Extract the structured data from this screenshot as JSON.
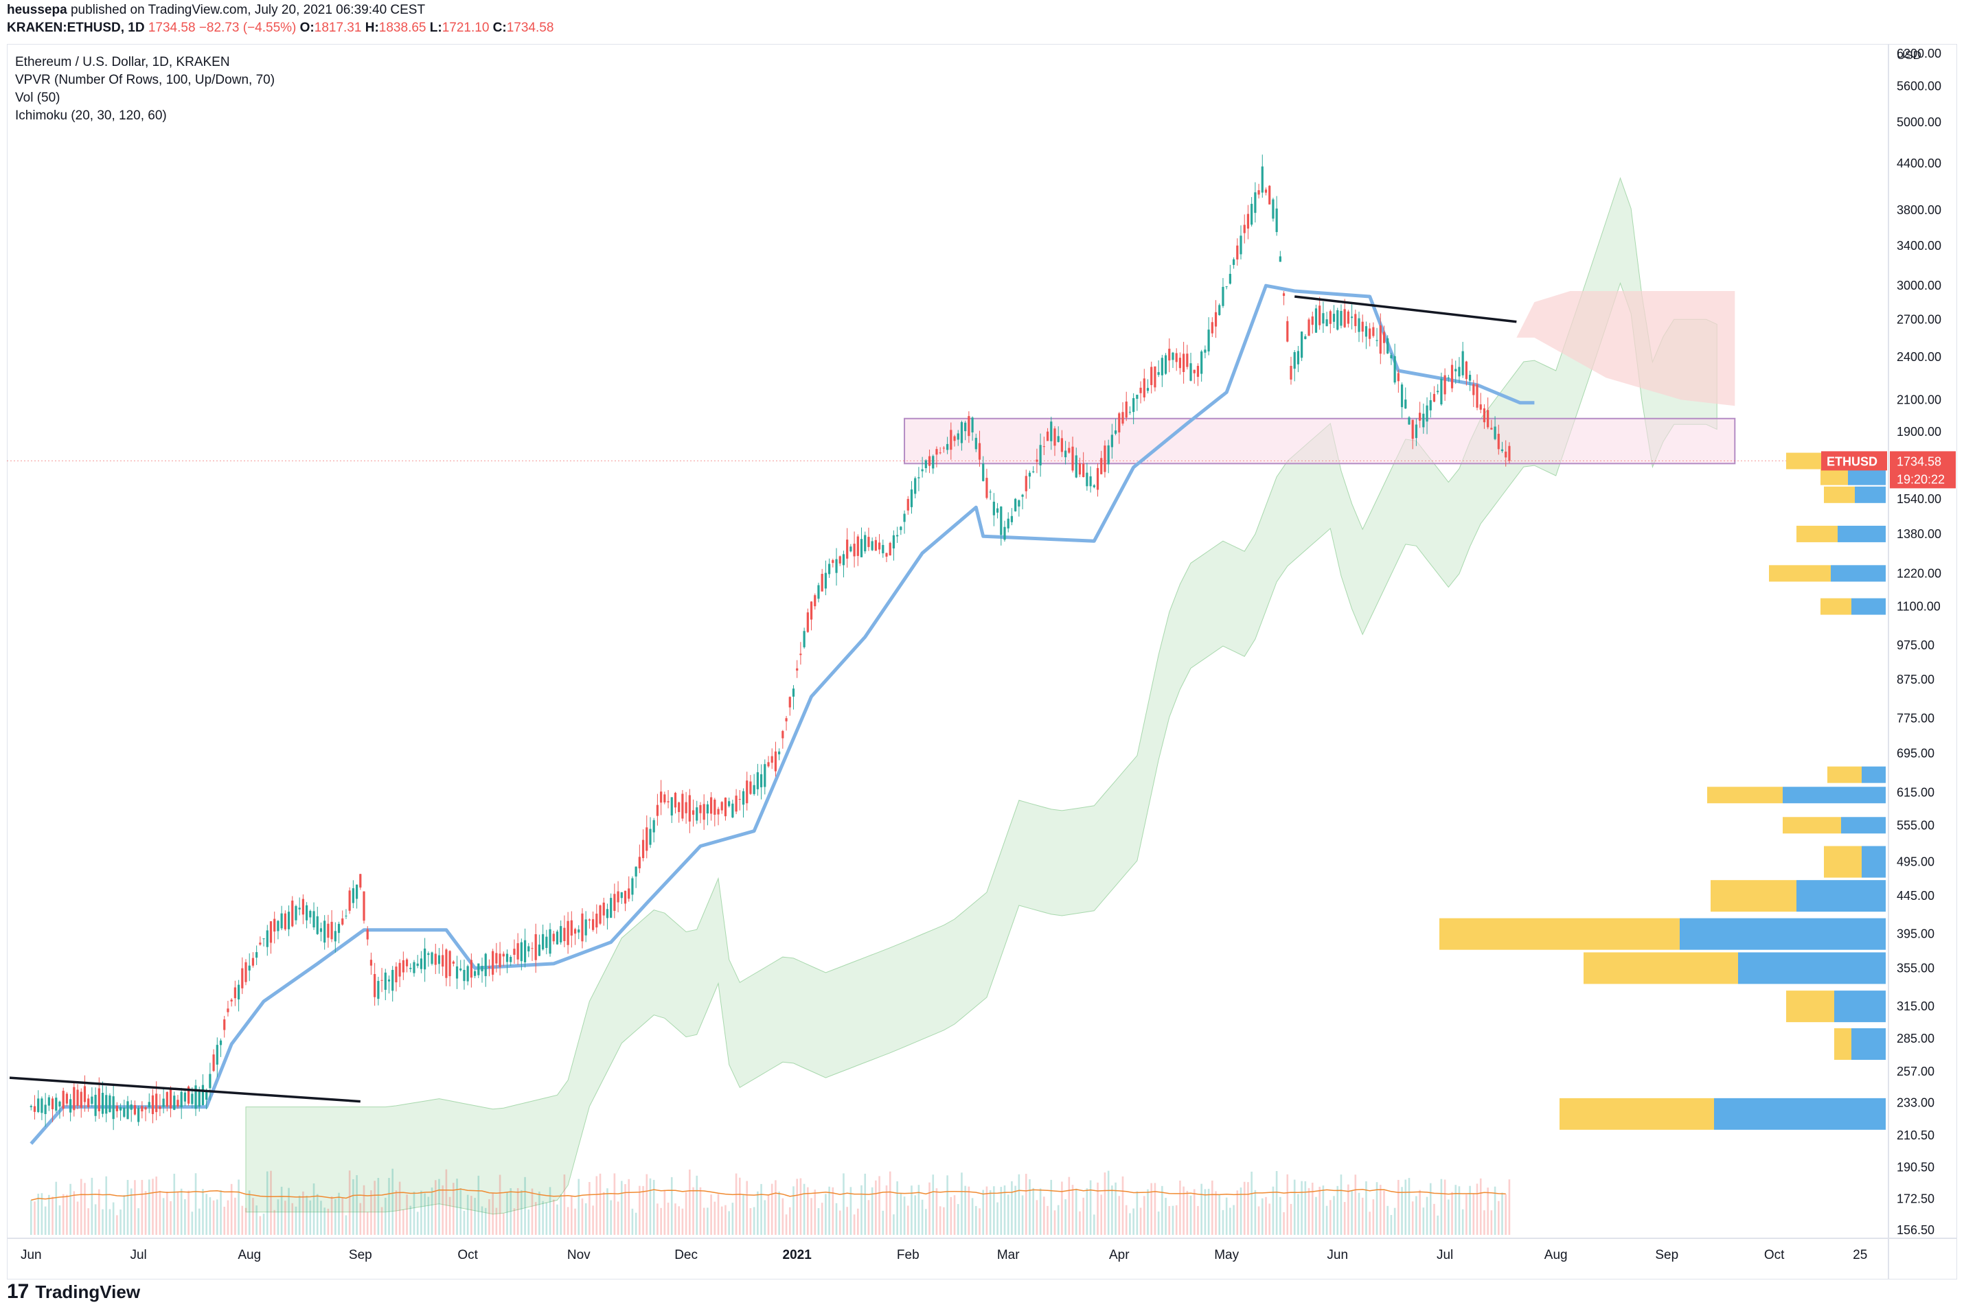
{
  "header": {
    "author": "heussepa",
    "published": "published on TradingView.com, July 20, 2021 06:39:40 CEST",
    "symbol": "KRAKEN:ETHUSD, 1D",
    "last": "1734.58",
    "change": "−82.73 (−4.55%)",
    "o_label": "O:",
    "o_value": "1817.31",
    "h_label": "H:",
    "h_value": "1838.65",
    "l_label": "L:",
    "l_value": "1721.10",
    "c_label": "C:",
    "c_value": "1734.58"
  },
  "legend": {
    "title": "Ethereum / U.S. Dollar, 1D, KRAKEN",
    "vpvr": "VPVR (Number Of Rows, 100, Up/Down, 70)",
    "vol": "Vol (50)",
    "ichimoku": "Ichimoku (20, 30, 120, 60)"
  },
  "footer": {
    "logo": "17",
    "brand": "TradingView"
  },
  "colors": {
    "up": "#26a69a",
    "down": "#ef5350",
    "kijun": "#7fb2e5",
    "cloud_green": "#cde9d0",
    "cloud_red": "#f9d3d3",
    "vp_up": "#5dade8",
    "vp_down": "#fad25f",
    "vol_ma": "#f0892f",
    "box": "#f9dbe8",
    "box_line": "#b48bc4"
  },
  "chart_data": {
    "type": "candlestick",
    "title": "Ethereum / U.S. Dollar, 1D, KRAKEN",
    "y_scale": "log",
    "y_unit": "USD",
    "y_ticks": [
      "6200.00",
      "5600.00",
      "5000.00",
      "4400.00",
      "3800.00",
      "3400.00",
      "3000.00",
      "2700.00",
      "2400.00",
      "2100.00",
      "1900.00",
      "1540.00",
      "1380.00",
      "1220.00",
      "1100.00",
      "975.00",
      "875.00",
      "775.00",
      "695.00",
      "615.00",
      "555.00",
      "495.00",
      "445.00",
      "395.00",
      "355.00",
      "315.00",
      "285.00",
      "257.00",
      "233.00",
      "210.50",
      "190.50",
      "172.50",
      "156.50"
    ],
    "x_ticks": [
      "Jun",
      "Jul",
      "Aug",
      "Sep",
      "Oct",
      "Nov",
      "Dec",
      "2021",
      "Feb",
      "Mar",
      "Apr",
      "May",
      "Jun",
      "Jul",
      "Aug",
      "Sep",
      "Oct",
      "25"
    ],
    "last_price": {
      "label": "ETHUSD",
      "value": "1734.58",
      "countdown": "19:20:22"
    },
    "price_path": [
      [
        "2020-06-01",
        230
      ],
      [
        "2020-06-15",
        236
      ],
      [
        "2020-07-01",
        228
      ],
      [
        "2020-07-20",
        240
      ],
      [
        "2020-07-27",
        320
      ],
      [
        "2020-08-05",
        390
      ],
      [
        "2020-08-15",
        430
      ],
      [
        "2020-08-25",
        390
      ],
      [
        "2020-09-01",
        470
      ],
      [
        "2020-09-05",
        335
      ],
      [
        "2020-09-20",
        370
      ],
      [
        "2020-10-01",
        350
      ],
      [
        "2020-10-20",
        380
      ],
      [
        "2020-11-05",
        410
      ],
      [
        "2020-11-15",
        450
      ],
      [
        "2020-11-24",
        600
      ],
      [
        "2020-12-05",
        580
      ],
      [
        "2020-12-15",
        590
      ],
      [
        "2020-12-27",
        690
      ],
      [
        "2021-01-04",
        1050
      ],
      [
        "2021-01-10",
        1250
      ],
      [
        "2021-01-20",
        1350
      ],
      [
        "2021-01-27",
        1300
      ],
      [
        "2021-02-05",
        1700
      ],
      [
        "2021-02-19",
        1950
      ],
      [
        "2021-02-23",
        1600
      ],
      [
        "2021-02-28",
        1400
      ],
      [
        "2021-03-13",
        1900
      ],
      [
        "2021-03-25",
        1600
      ],
      [
        "2021-04-01",
        1950
      ],
      [
        "2021-04-15",
        2400
      ],
      [
        "2021-04-23",
        2300
      ],
      [
        "2021-05-03",
        3200
      ],
      [
        "2021-05-11",
        4200
      ],
      [
        "2021-05-15",
        3700
      ],
      [
        "2021-05-19",
        2300
      ],
      [
        "2021-05-25",
        2700
      ],
      [
        "2021-06-05",
        2700
      ],
      [
        "2021-06-15",
        2500
      ],
      [
        "2021-06-22",
        1900
      ],
      [
        "2021-07-01",
        2200
      ],
      [
        "2021-07-06",
        2350
      ],
      [
        "2021-07-12",
        2000
      ],
      [
        "2021-07-19",
        1734.58
      ]
    ],
    "kijun_path": [
      [
        "2020-06-01",
        205
      ],
      [
        "2020-06-10",
        230
      ],
      [
        "2020-07-20",
        230
      ],
      [
        "2020-07-27",
        280
      ],
      [
        "2020-08-05",
        320
      ],
      [
        "2020-08-20",
        360
      ],
      [
        "2020-09-02",
        400
      ],
      [
        "2020-09-25",
        400
      ],
      [
        "2020-10-03",
        355
      ],
      [
        "2020-10-25",
        360
      ],
      [
        "2020-11-10",
        385
      ],
      [
        "2020-11-20",
        435
      ],
      [
        "2020-12-05",
        520
      ],
      [
        "2020-12-20",
        545
      ],
      [
        "2021-01-05",
        830
      ],
      [
        "2021-01-20",
        1000
      ],
      [
        "2021-02-05",
        1300
      ],
      [
        "2021-02-20",
        1500
      ],
      [
        "2021-02-22",
        1370
      ],
      [
        "2021-03-25",
        1350
      ],
      [
        "2021-04-05",
        1700
      ],
      [
        "2021-04-20",
        1950
      ],
      [
        "2021-05-01",
        2150
      ],
      [
        "2021-05-12",
        3000
      ],
      [
        "2021-05-20",
        2950
      ],
      [
        "2021-06-10",
        2900
      ],
      [
        "2021-06-18",
        2300
      ],
      [
        "2021-07-10",
        2200
      ],
      [
        "2021-07-22",
        2080
      ],
      [
        "2021-07-26",
        2080
      ]
    ],
    "support_box": {
      "top": 1980,
      "bottom": 1720,
      "from": "2021-01-31",
      "to": "2021-09-20"
    },
    "trendlines": [
      {
        "from": [
          "2020-05-26",
          252
        ],
        "to": [
          "2020-09-01",
          234
        ]
      },
      {
        "from": [
          "2021-05-20",
          2900
        ],
        "to": [
          "2021-07-21",
          2680
        ]
      }
    ],
    "volume_profile_rows": [
      {
        "price": 1734,
        "up": 80,
        "down": 65
      },
      {
        "price": 1650,
        "up": 55,
        "down": 40
      },
      {
        "price": 1560,
        "up": 45,
        "down": 45
      },
      {
        "price": 1380,
        "up": 70,
        "down": 60
      },
      {
        "price": 1220,
        "up": 80,
        "down": 90
      },
      {
        "price": 1100,
        "up": 50,
        "down": 45
      },
      {
        "price": 650,
        "up": 35,
        "down": 50
      },
      {
        "price": 610,
        "up": 150,
        "down": 110
      },
      {
        "price": 555,
        "up": 65,
        "down": 85
      },
      {
        "price": 495,
        "up": 35,
        "down": 55
      },
      {
        "price": 445,
        "up": 130,
        "down": 125
      },
      {
        "price": 395,
        "up": 300,
        "down": 350
      },
      {
        "price": 355,
        "up": 215,
        "down": 225
      },
      {
        "price": 315,
        "up": 75,
        "down": 70
      },
      {
        "price": 280,
        "up": 50,
        "down": 25
      },
      {
        "price": 225,
        "up": 250,
        "down": 225
      }
    ],
    "volume_ma_note": "Vol (50) moving average"
  }
}
